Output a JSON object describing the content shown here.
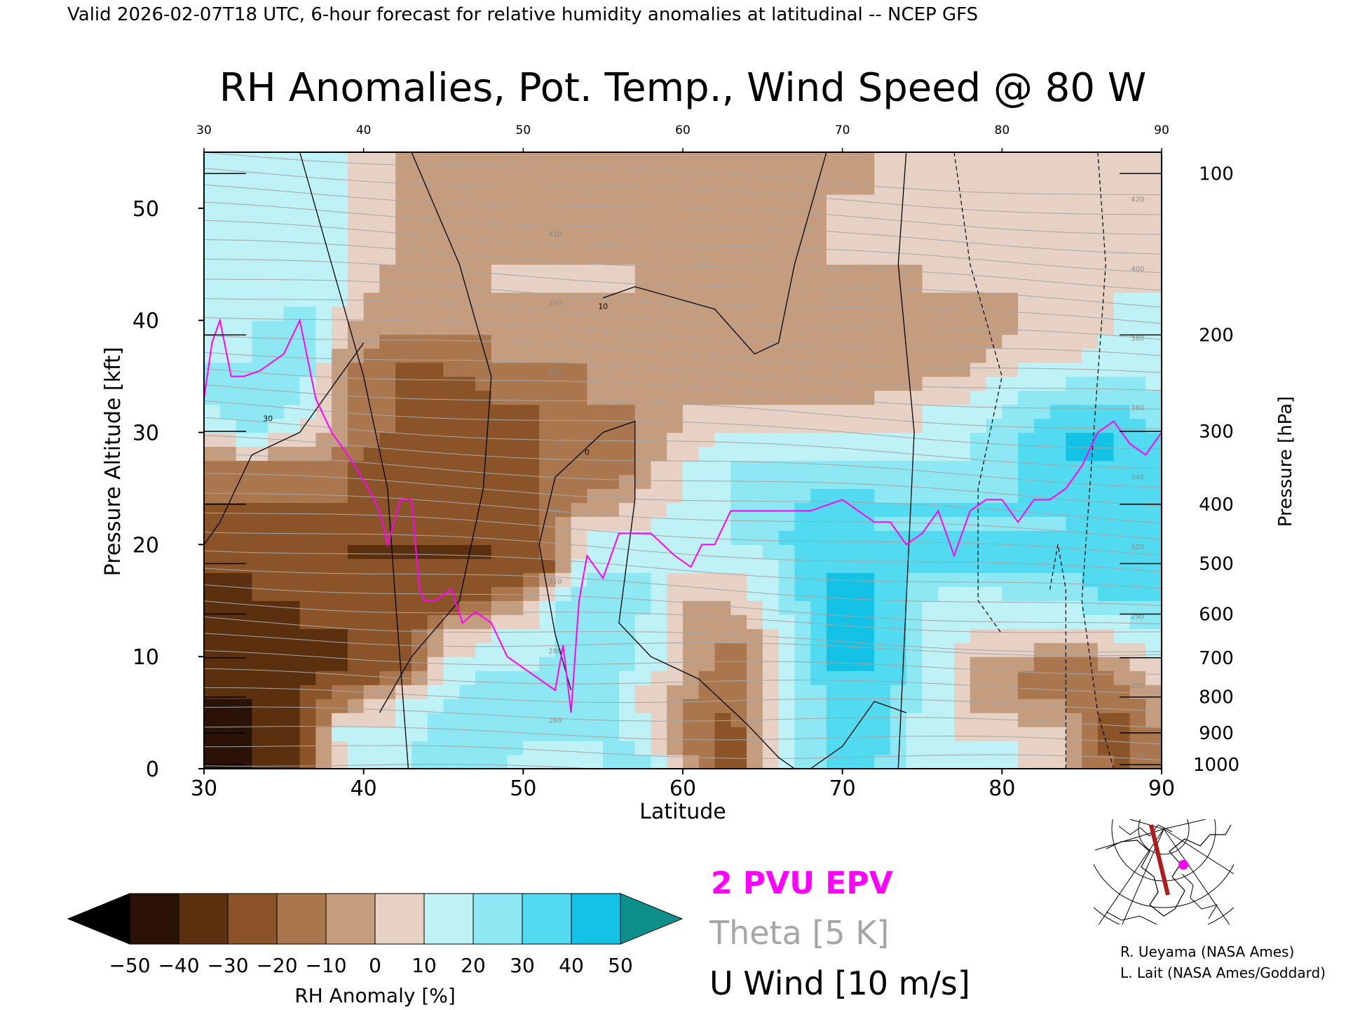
{
  "header": {
    "valid_line": "Valid 2026-02-07T18 UTC, 6-hour forecast for relative humidity anomalies at latitudinal -- NCEP GFS"
  },
  "colors": {
    "epv": "#ff00ff",
    "theta": "#a6a6a6",
    "uwind": "#000000",
    "frame": "#000000"
  },
  "chart_data": {
    "type": "heatmap",
    "title": "RH Anomalies, Pot. Temp., Wind Speed @ 80 W",
    "xlabel": "Latitude",
    "ylabel": "Pressure Altitude [kft]",
    "y2label": "Pressure [hPa]",
    "xlim": [
      30,
      90
    ],
    "ylim": [
      0,
      55
    ],
    "x_ticks": [
      30,
      40,
      50,
      60,
      70,
      80,
      90
    ],
    "x_tick_labels": [
      "30",
      "40",
      "50",
      "60",
      "70",
      "80",
      "90"
    ],
    "top_ticks": [
      30,
      40,
      50,
      60,
      70,
      80,
      90
    ],
    "top_tick_labels": [
      "30",
      "40",
      "50",
      "60",
      "70",
      "80",
      "90"
    ],
    "y_ticks": [
      0,
      10,
      20,
      30,
      40,
      50
    ],
    "y_tick_labels": [
      "0",
      "10",
      "20",
      "30",
      "40",
      "50"
    ],
    "pressure_ticks": [
      {
        "label": "100",
        "kft": 53.1
      },
      {
        "label": "200",
        "kft": 38.7
      },
      {
        "label": "300",
        "kft": 30.1
      },
      {
        "label": "400",
        "kft": 23.6
      },
      {
        "label": "500",
        "kft": 18.3
      },
      {
        "label": "600",
        "kft": 13.8
      },
      {
        "label": "700",
        "kft": 9.9
      },
      {
        "label": "800",
        "kft": 6.4
      },
      {
        "label": "900",
        "kft": 3.2
      },
      {
        "label": "1000",
        "kft": 0.36
      }
    ],
    "colorbar": {
      "label": "RH Anomaly [%]",
      "levels": [
        -50,
        -40,
        -30,
        -20,
        -10,
        0,
        10,
        20,
        30,
        40,
        50
      ],
      "tick_labels": [
        "−50",
        "−40",
        "−30",
        "−20",
        "−10",
        "0",
        "10",
        "20",
        "30",
        "40",
        "50"
      ],
      "colors": [
        "#2a1306",
        "#5a300f",
        "#8a5428",
        "#a9764d",
        "#c49c7e",
        "#e6d1c4",
        "#bff2f6",
        "#8de8f4",
        "#52dbf0",
        "#14c2e6",
        "#0f8fb3"
      ],
      "low_color": "#000000",
      "high_color": "#0f8f8a"
    },
    "rh_anomaly_grid": {
      "lat": [
        30,
        33,
        36,
        39,
        42,
        45,
        48,
        51,
        54,
        57,
        60,
        63,
        66,
        69,
        72,
        75,
        78,
        81,
        84,
        87,
        90
      ],
      "kft": [
        0,
        3,
        6,
        9,
        12,
        15,
        18,
        21,
        24,
        27,
        30,
        33,
        36,
        39,
        42,
        45,
        48,
        51,
        54
      ],
      "values": [
        [
          -50,
          -40,
          -30,
          10,
          20,
          30,
          20,
          10,
          10,
          30,
          0,
          -30,
          10,
          30,
          30,
          10,
          20,
          10,
          0,
          -20,
          -10
        ],
        [
          -45,
          -40,
          -30,
          20,
          10,
          30,
          30,
          20,
          20,
          20,
          -10,
          -30,
          10,
          30,
          40,
          10,
          10,
          10,
          0,
          -30,
          -10
        ],
        [
          -40,
          -40,
          -30,
          -10,
          10,
          20,
          30,
          30,
          30,
          10,
          -10,
          -20,
          10,
          30,
          40,
          20,
          0,
          -10,
          -10,
          -20,
          0
        ],
        [
          -40,
          -40,
          -35,
          -30,
          -30,
          10,
          20,
          20,
          30,
          20,
          0,
          -20,
          10,
          40,
          40,
          20,
          0,
          -10,
          -20,
          -10,
          10
        ],
        [
          -35,
          -35,
          -30,
          -30,
          -30,
          0,
          10,
          10,
          30,
          20,
          0,
          -10,
          10,
          40,
          40,
          20,
          10,
          10,
          10,
          10,
          20
        ],
        [
          -35,
          -30,
          -30,
          -30,
          -30,
          -30,
          -20,
          10,
          30,
          30,
          0,
          0,
          20,
          40,
          40,
          20,
          10,
          20,
          20,
          30,
          30
        ],
        [
          -30,
          -30,
          -30,
          -30,
          -30,
          -30,
          -30,
          -30,
          20,
          20,
          10,
          10,
          20,
          40,
          40,
          30,
          30,
          30,
          30,
          40,
          30
        ],
        [
          -30,
          -25,
          -20,
          -30,
          -30,
          -30,
          -30,
          -20,
          10,
          10,
          20,
          20,
          30,
          40,
          30,
          30,
          30,
          30,
          30,
          40,
          30
        ],
        [
          -20,
          -20,
          -20,
          -20,
          -30,
          -30,
          -30,
          -20,
          -10,
          0,
          10,
          20,
          20,
          40,
          30,
          30,
          30,
          30,
          30,
          40,
          30
        ],
        [
          -10,
          -10,
          -10,
          -20,
          -30,
          -30,
          -30,
          -20,
          -20,
          -10,
          10,
          20,
          20,
          20,
          20,
          20,
          20,
          30,
          40,
          40,
          30
        ],
        [
          10,
          20,
          10,
          -10,
          -20,
          -30,
          -30,
          -20,
          -20,
          -10,
          0,
          10,
          10,
          10,
          10,
          10,
          20,
          30,
          40,
          40,
          30
        ],
        [
          20,
          30,
          20,
          -10,
          -20,
          -30,
          -20,
          -20,
          -10,
          -10,
          0,
          0,
          0,
          0,
          0,
          10,
          10,
          20,
          30,
          30,
          20
        ],
        [
          20,
          20,
          30,
          -10,
          -20,
          -20,
          -10,
          -10,
          -10,
          -10,
          -10,
          -10,
          -10,
          -10,
          -10,
          -10,
          0,
          10,
          10,
          20,
          10
        ],
        [
          10,
          20,
          30,
          0,
          -10,
          -10,
          -10,
          -10,
          -10,
          -10,
          -10,
          -10,
          -10,
          -10,
          -10,
          -10,
          -10,
          0,
          0,
          10,
          10
        ],
        [
          10,
          10,
          20,
          10,
          -10,
          -10,
          0,
          0,
          0,
          0,
          -10,
          -10,
          -10,
          -5,
          -5,
          0,
          0,
          0,
          0,
          10,
          10
        ],
        [
          10,
          10,
          10,
          10,
          0,
          -10,
          0,
          0,
          0,
          0,
          0,
          -5,
          -5,
          0,
          0,
          0,
          0,
          0,
          0,
          0,
          10
        ],
        [
          10,
          10,
          10,
          10,
          0,
          -5,
          -5,
          -5,
          -5,
          -5,
          -5,
          -5,
          0,
          0,
          0,
          0,
          0,
          0,
          0,
          0,
          10
        ],
        [
          10,
          10,
          10,
          10,
          0,
          -5,
          -5,
          -5,
          -5,
          -5,
          -5,
          -5,
          -5,
          0,
          0,
          0,
          0,
          0,
          0,
          0,
          10
        ],
        [
          10,
          10,
          10,
          10,
          0,
          -5,
          -5,
          -5,
          -5,
          -5,
          -5,
          -5,
          -5,
          -5,
          0,
          0,
          0,
          0,
          0,
          0,
          10
        ]
      ]
    },
    "epv_2pvu": {
      "name": "2 PVU EPV",
      "lat": [
        30,
        30.5,
        31,
        31.7,
        32.5,
        33.5,
        35,
        36,
        37,
        38,
        39,
        40.3,
        41,
        41.5,
        42.3,
        43,
        43.5,
        43.8,
        44.5,
        45.5,
        46.2,
        47,
        48,
        49,
        50,
        51,
        52,
        52.5,
        53,
        53.5,
        54,
        55,
        56,
        58,
        59.5,
        60.5,
        61.2,
        62,
        63,
        65,
        66.5,
        68,
        70,
        71,
        72,
        73,
        74,
        75,
        76,
        77,
        78,
        79,
        80,
        81,
        82,
        83,
        84,
        85,
        86,
        87,
        88,
        89,
        90
      ],
      "kft": [
        33,
        38,
        40,
        35,
        35,
        35.5,
        37,
        40,
        33,
        30,
        28,
        25,
        23,
        20,
        24,
        24,
        16,
        15,
        15,
        16,
        13,
        14,
        13,
        10,
        9,
        8,
        7,
        11,
        5,
        15,
        19,
        17,
        21,
        21,
        19,
        18,
        20,
        20,
        23,
        23,
        23,
        23,
        24,
        23,
        22,
        22,
        20,
        21,
        23,
        19,
        23,
        24,
        24,
        22,
        24,
        24,
        25,
        27,
        30,
        31,
        29,
        28,
        30
      ]
    },
    "theta_contours": {
      "name": "Theta [5 K]",
      "interval_K": 5,
      "labels": [
        "250",
        "260",
        "270",
        "280",
        "290",
        "310",
        "320",
        "330",
        "340",
        "350",
        "360",
        "370",
        "380",
        "390",
        "400",
        "410",
        "420"
      ],
      "min_K": 250,
      "max_K": 420
    },
    "u_wind_contours": {
      "name": "U Wind [10 m/s]",
      "interval_ms": 10,
      "labels": [
        "0",
        "10",
        "30"
      ]
    },
    "inset_map": {
      "credit_1": "R. Ueyama (NASA Ames)",
      "credit_2": "L. Lait (NASA Ames/Goddard)"
    }
  }
}
